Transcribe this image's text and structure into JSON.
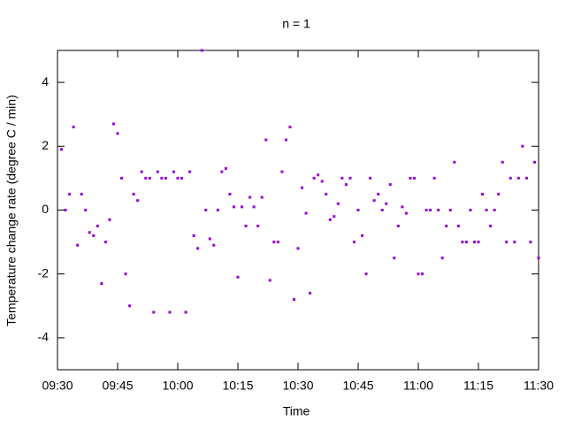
{
  "chart_data": {
    "type": "scatter",
    "title": "n = 1",
    "x_label": "Time",
    "y_label": "Temperature change rate (degree C / min)",
    "color": "#9400d3",
    "x": [
      "09:31",
      "09:32",
      "09:33",
      "09:34",
      "09:35",
      "09:36",
      "09:37",
      "09:38",
      "09:39",
      "09:40",
      "09:41",
      "09:42",
      "09:43",
      "09:44",
      "09:45",
      "09:46",
      "09:47",
      "09:48",
      "09:49",
      "09:50",
      "09:51",
      "09:52",
      "09:53",
      "09:54",
      "09:55",
      "09:56",
      "09:57",
      "09:58",
      "09:59",
      "10:00",
      "10:01",
      "10:02",
      "10:03",
      "10:04",
      "10:05",
      "10:06",
      "10:07",
      "10:08",
      "10:09",
      "10:10",
      "10:11",
      "10:12",
      "10:13",
      "10:14",
      "10:15",
      "10:16",
      "10:17",
      "10:18",
      "10:19",
      "10:20",
      "10:21",
      "10:22",
      "10:23",
      "10:24",
      "10:25",
      "10:26",
      "10:27",
      "10:28",
      "10:29",
      "10:30",
      "10:31",
      "10:32",
      "10:33",
      "10:34",
      "10:35",
      "10:36",
      "10:37",
      "10:38",
      "10:39",
      "10:40",
      "10:41",
      "10:42",
      "10:43",
      "10:44",
      "10:45",
      "10:46",
      "10:47",
      "10:48",
      "10:49",
      "10:50",
      "10:51",
      "10:52",
      "10:53",
      "10:54",
      "10:55",
      "10:56",
      "10:57",
      "10:58",
      "10:59",
      "11:00",
      "11:01",
      "11:02",
      "11:03",
      "11:04",
      "11:05",
      "11:06",
      "11:07",
      "11:08",
      "11:09",
      "11:10",
      "11:11",
      "11:12",
      "11:13",
      "11:14",
      "11:15",
      "11:16",
      "11:17",
      "11:18",
      "11:19",
      "11:20",
      "11:21",
      "11:22",
      "11:23",
      "11:24",
      "11:25",
      "11:26",
      "11:27",
      "11:28",
      "11:29",
      "11:30"
    ],
    "values": [
      1.9,
      0,
      0.5,
      2.6,
      -1.1,
      0.5,
      0,
      -0.7,
      -0.8,
      -0.5,
      -2.3,
      -1,
      -0.3,
      2.7,
      2.4,
      1,
      -2,
      -3,
      0.5,
      0.3,
      1.2,
      1,
      1,
      -3.2,
      1.2,
      1,
      1,
      -3.2,
      1.2,
      1,
      1,
      -3.2,
      1.2,
      -0.8,
      -1.2,
      5,
      0,
      -0.9,
      -1.1,
      0,
      1.2,
      1.3,
      0.5,
      0.1,
      -2.1,
      0.1,
      -0.5,
      0.4,
      0.1,
      -0.5,
      0.4,
      2.2,
      -2.2,
      -1,
      -1,
      1.2,
      2.2,
      2.6,
      -2.8,
      -1.2,
      0.7,
      -0.1,
      -2.6,
      1,
      1.1,
      0.9,
      0.5,
      -0.3,
      -0.2,
      0.2,
      1,
      0.8,
      1,
      -1,
      0,
      -0.8,
      -2,
      1,
      0.3,
      0.5,
      0,
      0.2,
      0.8,
      -1.5,
      -0.5,
      0.1,
      -0.1,
      1,
      1,
      -2,
      -2,
      0,
      0,
      1,
      0,
      -1.5,
      -0.5,
      0,
      1.5,
      -0.5,
      -1,
      -1,
      0,
      -1,
      -1,
      0.5,
      0,
      -0.5,
      0,
      0.5,
      1.5,
      -1,
      1,
      -1,
      1,
      2,
      1,
      -1,
      1.5,
      -1.5
    ],
    "xlim": [
      "09:30",
      "11:30"
    ],
    "xticks": [
      "09:30",
      "09:45",
      "10:00",
      "10:15",
      "10:30",
      "10:45",
      "11:00",
      "11:15",
      "11:30"
    ],
    "ylim": [
      -5,
      5
    ],
    "yticks": [
      -4,
      -2,
      0,
      2,
      4
    ]
  }
}
